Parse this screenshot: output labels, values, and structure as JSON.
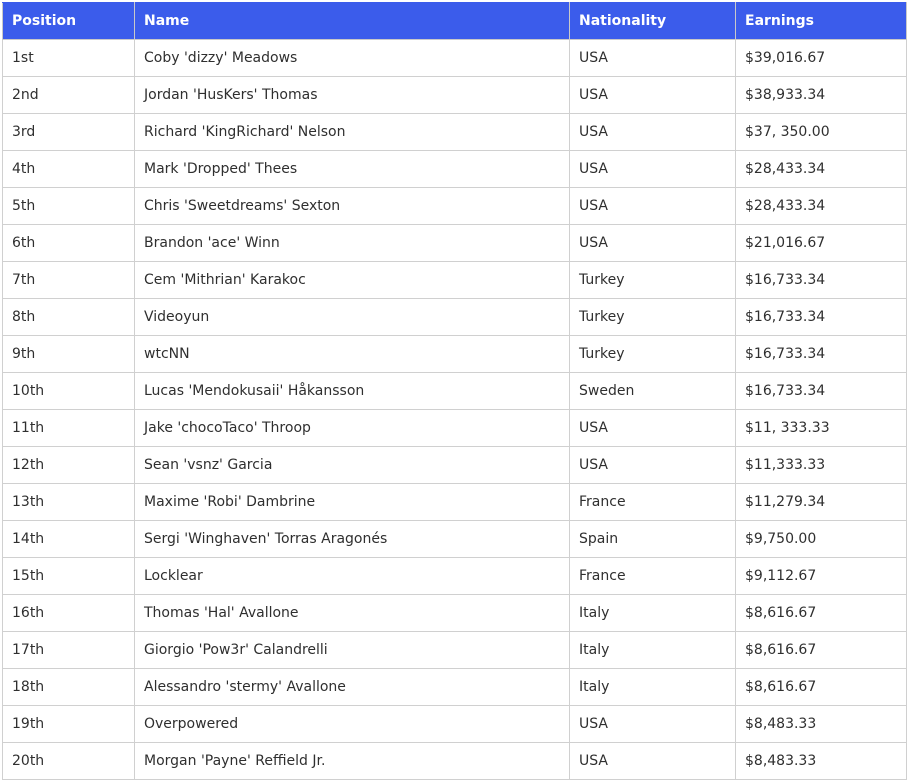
{
  "table": {
    "headers": [
      "Position",
      "Name",
      "Nationality",
      "Earnings"
    ],
    "rows": [
      {
        "position": "1st",
        "name": "Coby 'dizzy' Meadows",
        "nationality": "USA",
        "earnings": "$39,016.67"
      },
      {
        "position": "2nd",
        "name": "Jordan 'HusKers' Thomas",
        "nationality": "USA",
        "earnings": "$38,933.34"
      },
      {
        "position": "3rd",
        "name": "Richard 'KingRichard' Nelson",
        "nationality": "USA",
        "earnings": "$37, 350.00"
      },
      {
        "position": "4th",
        "name": "Mark 'Dropped' Thees",
        "nationality": "USA",
        "earnings": "$28,433.34"
      },
      {
        "position": "5th",
        "name": "Chris 'Sweetdreams' Sexton",
        "nationality": "USA",
        "earnings": "$28,433.34"
      },
      {
        "position": "6th",
        "name": "Brandon 'ace' Winn",
        "nationality": "USA",
        "earnings": "$21,016.67"
      },
      {
        "position": "7th",
        "name": "Cem 'Mithrian' Karakoc",
        "nationality": "Turkey",
        "earnings": "$16,733.34"
      },
      {
        "position": "8th",
        "name": "Videoyun",
        "nationality": "Turkey",
        "earnings": "$16,733.34"
      },
      {
        "position": "9th",
        "name": "wtcNN",
        "nationality": "Turkey",
        "earnings": "$16,733.34"
      },
      {
        "position": "10th",
        "name": "Lucas 'Mendokusaii' Håkansson",
        "nationality": "Sweden",
        "earnings": "$16,733.34"
      },
      {
        "position": "11th",
        "name": "Jake 'chocoTaco' Throop",
        "nationality": "USA",
        "earnings": "$11, 333.33"
      },
      {
        "position": "12th",
        "name": "Sean 'vsnz' Garcia",
        "nationality": "USA",
        "earnings": "$11,333.33"
      },
      {
        "position": "13th",
        "name": "Maxime 'Robi' Dambrine",
        "nationality": "France",
        "earnings": "$11,279.34"
      },
      {
        "position": "14th",
        "name": "Sergi 'Winghaven' Torras Aragonés",
        "nationality": "Spain",
        "earnings": "$9,750.00"
      },
      {
        "position": "15th",
        "name": "Locklear",
        "nationality": "France",
        "earnings": "$9,112.67"
      },
      {
        "position": "16th",
        "name": "Thomas 'Hal' Avallone",
        "nationality": "Italy",
        "earnings": "$8,616.67"
      },
      {
        "position": "17th",
        "name": "Giorgio 'Pow3r' Calandrelli",
        "nationality": "Italy",
        "earnings": "$8,616.67"
      },
      {
        "position": "18th",
        "name": "Alessandro 'stermy' Avallone",
        "nationality": "Italy",
        "earnings": "$8,616.67"
      },
      {
        "position": "19th",
        "name": "Overpowered",
        "nationality": "USA",
        "earnings": "$8,483.33"
      },
      {
        "position": "20th",
        "name": "Morgan 'Payne' Reffield Jr.",
        "nationality": "USA",
        "earnings": "$8,483.33"
      }
    ]
  },
  "colors": {
    "header_background": "#3b5ceb",
    "header_text": "#ffffff",
    "cell_text": "#2f2f2f",
    "border": "#d0d0d0"
  }
}
